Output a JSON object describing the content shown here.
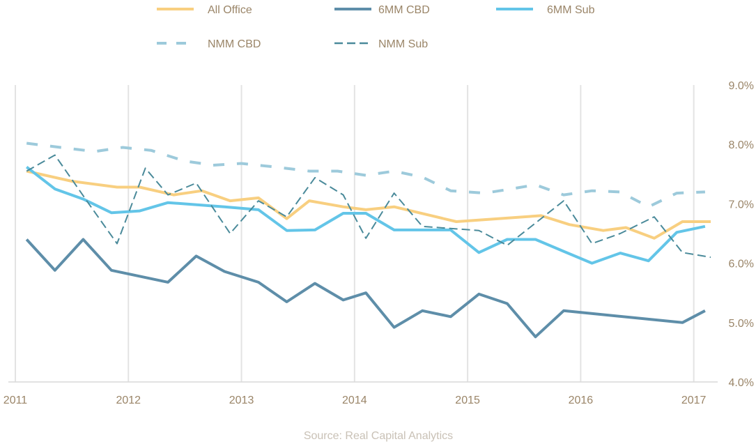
{
  "chart_data": {
    "type": "line",
    "x_ticks": [
      "2011",
      "2012",
      "2013",
      "2014",
      "2015",
      "2016",
      "2017"
    ],
    "y_ticks": [
      "4.0%",
      "5.0%",
      "6.0%",
      "7.0%",
      "8.0%",
      "9.0%"
    ],
    "ylim": [
      4.0,
      9.0
    ],
    "xlim": [
      2011.0,
      2017.15
    ],
    "y_axis_side": "right",
    "grid": "vertical",
    "legend_position": "top",
    "source": "Source: Real Capital Analytics",
    "series": [
      {
        "name": "All Office",
        "color": "#f8cf80",
        "dash": "solid",
        "x": [
          2011.1,
          2011.5,
          2011.9,
          2012.1,
          2012.4,
          2012.65,
          2012.9,
          2013.15,
          2013.4,
          2013.6,
          2013.9,
          2014.1,
          2014.35,
          2014.9,
          2015.65,
          2015.9,
          2016.2,
          2016.4,
          2016.65,
          2016.9,
          2017.15
        ],
        "y": [
          7.55,
          7.38,
          7.28,
          7.28,
          7.15,
          7.22,
          7.05,
          7.1,
          6.75,
          7.05,
          6.95,
          6.9,
          6.95,
          6.7,
          6.8,
          6.65,
          6.55,
          6.6,
          6.42,
          6.7,
          6.7
        ]
      },
      {
        "name": "6MM CBD",
        "color": "#5e8ea9",
        "dash": "solid",
        "x": [
          2011.1,
          2011.35,
          2011.6,
          2011.85,
          2012.35,
          2012.6,
          2012.85,
          2013.15,
          2013.4,
          2013.65,
          2013.9,
          2014.1,
          2014.35,
          2014.6,
          2014.85,
          2015.1,
          2015.35,
          2015.6,
          2015.85,
          2016.9,
          2017.1
        ],
        "y": [
          6.4,
          5.88,
          6.4,
          5.88,
          5.68,
          6.12,
          5.86,
          5.68,
          5.35,
          5.66,
          5.38,
          5.5,
          4.92,
          5.2,
          5.1,
          5.48,
          5.32,
          4.76,
          5.2,
          5.0,
          5.2
        ]
      },
      {
        "name": "6MM Sub",
        "color": "#63c5e8",
        "dash": "solid",
        "x": [
          2011.1,
          2011.35,
          2011.6,
          2011.85,
          2012.1,
          2012.35,
          2012.85,
          2013.15,
          2013.4,
          2013.65,
          2013.9,
          2014.1,
          2014.35,
          2014.85,
          2015.1,
          2015.35,
          2015.6,
          2015.85,
          2016.1,
          2016.35,
          2016.6,
          2016.85,
          2017.1
        ],
        "y": [
          7.62,
          7.25,
          7.08,
          6.85,
          6.88,
          7.02,
          6.95,
          6.9,
          6.55,
          6.56,
          6.84,
          6.84,
          6.56,
          6.56,
          6.18,
          6.4,
          6.4,
          6.2,
          6.0,
          6.17,
          6.04,
          6.52,
          6.62
        ]
      },
      {
        "name": "NMM CBD",
        "color": "#9dcadb",
        "dash": "long",
        "x": [
          2011.1,
          2011.4,
          2011.7,
          2011.95,
          2012.2,
          2012.5,
          2012.75,
          2013.0,
          2013.3,
          2013.6,
          2013.85,
          2014.1,
          2014.35,
          2014.6,
          2014.85,
          2015.15,
          2015.35,
          2015.6,
          2015.85,
          2016.1,
          2016.35,
          2016.6,
          2016.85,
          2017.1
        ],
        "y": [
          8.02,
          7.95,
          7.88,
          7.95,
          7.9,
          7.72,
          7.65,
          7.68,
          7.62,
          7.55,
          7.55,
          7.48,
          7.55,
          7.45,
          7.22,
          7.18,
          7.24,
          7.32,
          7.15,
          7.22,
          7.2,
          6.95,
          7.18,
          7.2
        ]
      },
      {
        "name": "NMM Sub",
        "color": "#4a8a9a",
        "dash": "medium",
        "x": [
          2011.1,
          2011.35,
          2011.65,
          2011.9,
          2012.15,
          2012.35,
          2012.6,
          2012.9,
          2013.15,
          2013.4,
          2013.65,
          2013.9,
          2014.1,
          2014.35,
          2014.6,
          2015.1,
          2015.35,
          2015.85,
          2016.1,
          2016.35,
          2016.65,
          2016.9,
          2017.15
        ],
        "y": [
          7.55,
          7.82,
          7.0,
          6.33,
          7.6,
          7.15,
          7.35,
          6.5,
          7.05,
          6.78,
          7.44,
          7.15,
          6.42,
          7.18,
          6.62,
          6.55,
          6.3,
          7.05,
          6.33,
          6.5,
          6.78,
          6.18,
          6.1
        ]
      }
    ]
  }
}
